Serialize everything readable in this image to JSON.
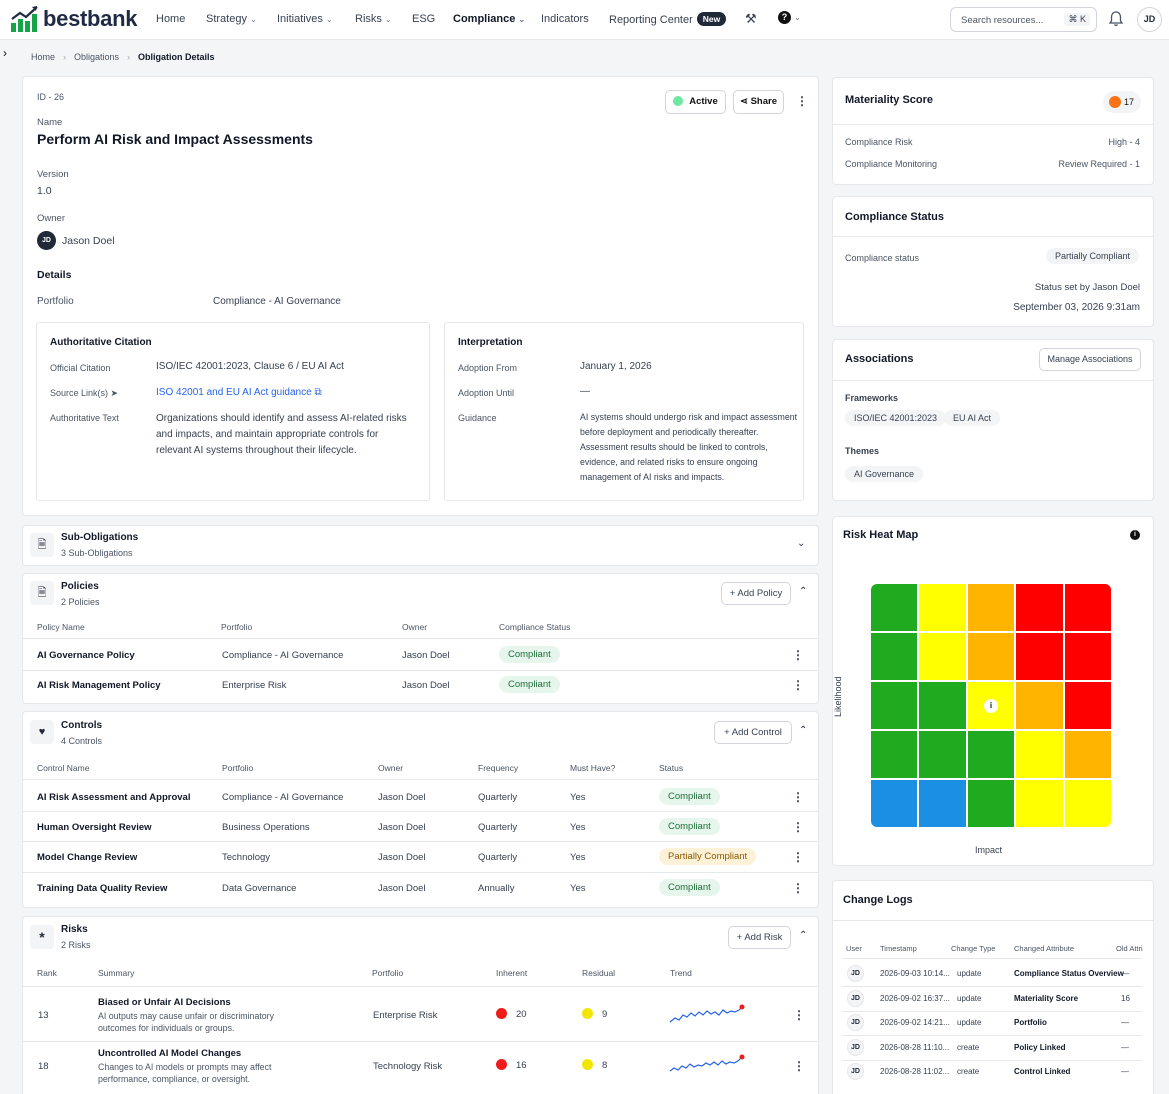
{
  "nav": {
    "logo": "bestbank",
    "items": [
      "Home",
      "Strategy",
      "Initiatives",
      "Risks",
      "ESG",
      "Compliance",
      "Indicators",
      "Reporting Center"
    ],
    "new_badge": "New",
    "search_placeholder": "Search resources...",
    "search_shortcut": "⌘ K",
    "user_initials": "JD"
  },
  "breadcrumb": [
    "Home",
    "Obligations",
    "Obligation Details"
  ],
  "obligation": {
    "id": "ID - 26",
    "status": "Active",
    "share_label": "Share",
    "name_label": "Name",
    "name": "Perform AI Risk and Impact Assessments",
    "version_label": "Version",
    "version": "1.0",
    "owner_label": "Owner",
    "owner_initials": "JD",
    "owner": "Jason Doel",
    "details_label": "Details",
    "portfolio_label": "Portfolio",
    "portfolio": "Compliance - AI Governance"
  },
  "citation": {
    "title": "Authoritative Citation",
    "official_label": "Official Citation",
    "official": "ISO/IEC 42001:2023, Clause 6 / EU AI Act",
    "source_label": "Source Link(s)",
    "source": "ISO 42001 and EU AI Act guidance",
    "text_label": "Authoritative Text",
    "text": [
      "Organizations should identify and assess AI-related risks",
      "and impacts, and maintain appropriate controls for",
      "relevant AI systems throughout their lifecycle."
    ]
  },
  "interpretation": {
    "title": "Interpretation",
    "from_label": "Adoption From",
    "from": "January 1, 2026",
    "until_label": "Adoption Until",
    "until": "—",
    "guidance_label": "Guidance",
    "guidance": [
      "AI systems should undergo risk and impact assessment",
      "before deployment and periodically thereafter.",
      "Assessment results should be linked to controls,",
      "evidence, and related risks to ensure ongoing",
      "management of AI risks and impacts."
    ]
  },
  "sub_obligations": {
    "title": "Sub-Obligations",
    "count": "3 Sub-Obligations"
  },
  "policies": {
    "title": "Policies",
    "count": "2 Policies",
    "add_label": "Add Policy",
    "headers": [
      "Policy Name",
      "Portfolio",
      "Owner",
      "Compliance Status"
    ],
    "rows": [
      [
        "AI Governance Policy",
        "Compliance - AI Governance",
        "Jason Doel",
        "Compliant"
      ],
      [
        "AI Risk Management Policy",
        "Enterprise Risk",
        "Jason Doel",
        "Compliant"
      ]
    ]
  },
  "controls": {
    "title": "Controls",
    "count": "4 Controls",
    "add_label": "Add Control",
    "headers": [
      "Control Name",
      "Portfolio",
      "Owner",
      "Frequency",
      "Must Have?",
      "Status"
    ],
    "rows": [
      [
        "AI Risk Assessment and Approval",
        "Compliance - AI Governance",
        "Jason Doel",
        "Quarterly",
        "Yes",
        "Compliant"
      ],
      [
        "Human Oversight Review",
        "Business Operations",
        "Jason Doel",
        "Quarterly",
        "Yes",
        "Compliant"
      ],
      [
        "Model Change Review",
        "Technology",
        "Jason Doel",
        "Quarterly",
        "Yes",
        "Partially Compliant"
      ],
      [
        "Training Data Quality Review",
        "Data Governance",
        "Jason Doel",
        "Annually",
        "Yes",
        "Compliant"
      ]
    ]
  },
  "risks": {
    "title": "Risks",
    "count": "2 Risks",
    "add_label": "Add Risk",
    "headers": [
      "Rank",
      "Summary",
      "Portfolio",
      "Inherent",
      "Residual",
      "Trend"
    ],
    "rows": [
      {
        "rank": "13",
        "title": "Biased or Unfair AI Decisions",
        "desc": [
          "AI outputs may cause unfair or discriminatory",
          "outcomes for individuals or groups."
        ],
        "portfolio": "Enterprise Risk",
        "inherent": "20",
        "residual": "9"
      },
      {
        "rank": "18",
        "title": "Uncontrolled AI Model Changes",
        "desc": [
          "Changes to AI models or prompts may affect",
          "performance, compliance, or oversight."
        ],
        "portfolio": "Technology Risk",
        "inherent": "16",
        "residual": "8"
      }
    ]
  },
  "materiality": {
    "title": "Materiality Score",
    "score": "17",
    "rows": [
      [
        "Compliance Risk",
        "High - 4"
      ],
      [
        "Compliance Monitoring",
        "Review Required - 1"
      ]
    ]
  },
  "compliance_status": {
    "title": "Compliance Status",
    "label": "Compliance status",
    "value": "Partially Compliant",
    "set_by": "Status set by Jason Doel",
    "date": "September 03, 2026 9:31am"
  },
  "associations": {
    "title": "Associations",
    "manage_label": "Manage Associations",
    "frameworks_label": "Frameworks",
    "frameworks": [
      "ISO/IEC 42001:2023",
      "EU AI Act"
    ],
    "themes_label": "Themes",
    "themes": [
      "AI Governance"
    ]
  },
  "heatmap": {
    "title": "Risk Heat Map",
    "xlabel": "Impact",
    "ylabel": "Likelihood",
    "marker": "i",
    "grid": [
      [
        "#1faa1f",
        "#ffff00",
        "#ffb400",
        "#ff0000",
        "#ff0000"
      ],
      [
        "#1faa1f",
        "#ffff00",
        "#ffb400",
        "#ff0000",
        "#ff0000"
      ],
      [
        "#1faa1f",
        "#1faa1f",
        "#ffff00",
        "#ffb400",
        "#ff0000"
      ],
      [
        "#1faa1f",
        "#1faa1f",
        "#1faa1f",
        "#ffff00",
        "#ffb400"
      ],
      [
        "#1a8fe3",
        "#1a8fe3",
        "#1faa1f",
        "#ffff00",
        "#ffff00"
      ]
    ]
  },
  "change_logs": {
    "title": "Change Logs",
    "headers": [
      "User",
      "Timestamp",
      "Change Type",
      "Changed Attribute",
      "Old Attri"
    ],
    "rows": [
      [
        "JD",
        "2026-09-03 10:14...",
        "update",
        "Compliance Status Overview",
        "—"
      ],
      [
        "JD",
        "2026-09-02 16:37...",
        "update",
        "Materiality Score",
        "16"
      ],
      [
        "JD",
        "2026-09-02 14:21...",
        "update",
        "Portfolio",
        "—"
      ],
      [
        "JD",
        "2026-08-28 11:10...",
        "create",
        "Policy Linked",
        "—"
      ],
      [
        "JD",
        "2026-08-28 11:02...",
        "create",
        "Control Linked",
        "—"
      ]
    ]
  }
}
